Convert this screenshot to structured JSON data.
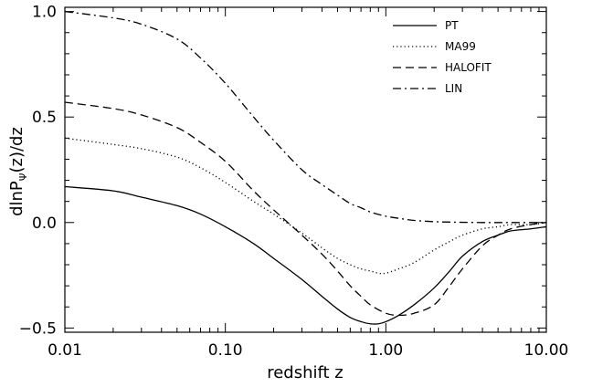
{
  "chart_data": {
    "type": "line",
    "xlabel": "redshift z",
    "ylabel": "dlnP_Ψ(z)/dz",
    "ylabel_parts": {
      "main": "dlnP",
      "sub": "Ψ",
      "tail": "(z)/dz"
    },
    "x_scale": "log",
    "xlim": [
      0.01,
      10.0
    ],
    "ylim": [
      -0.52,
      1.02
    ],
    "x_ticks": [
      {
        "value": 0.01,
        "label": "0.01"
      },
      {
        "value": 0.1,
        "label": "0.10"
      },
      {
        "value": 1.0,
        "label": "1.00"
      },
      {
        "value": 10.0,
        "label": "10.00"
      }
    ],
    "y_ticks": [
      {
        "value": -0.5,
        "label": "−0.5"
      },
      {
        "value": 0.0,
        "label": "0.0"
      },
      {
        "value": 0.5,
        "label": "0.5"
      },
      {
        "value": 1.0,
        "label": "1.0"
      }
    ],
    "grid": false,
    "legend_position": "top-right",
    "series": [
      {
        "name": "PT",
        "dash": "solid",
        "x": [
          0.01,
          0.02,
          0.03,
          0.05,
          0.07,
          0.1,
          0.15,
          0.2,
          0.3,
          0.4,
          0.5,
          0.6,
          0.7,
          0.8,
          0.9,
          1.0,
          1.2,
          1.5,
          2.0,
          2.5,
          3.0,
          4.0,
          5.0,
          6.0,
          8.0,
          10.0
        ],
        "y": [
          0.17,
          0.15,
          0.12,
          0.08,
          0.04,
          -0.02,
          -0.1,
          -0.17,
          -0.27,
          -0.35,
          -0.41,
          -0.45,
          -0.47,
          -0.48,
          -0.48,
          -0.47,
          -0.44,
          -0.39,
          -0.31,
          -0.23,
          -0.16,
          -0.09,
          -0.06,
          -0.04,
          -0.03,
          -0.02
        ]
      },
      {
        "name": "MA99",
        "dash": "dotted",
        "x": [
          0.01,
          0.02,
          0.03,
          0.05,
          0.07,
          0.1,
          0.15,
          0.2,
          0.3,
          0.4,
          0.5,
          0.6,
          0.7,
          0.8,
          0.9,
          1.0,
          1.2,
          1.5,
          2.0,
          2.5,
          3.0,
          4.0,
          5.0,
          6.0,
          8.0,
          10.0
        ],
        "y": [
          0.4,
          0.37,
          0.35,
          0.31,
          0.26,
          0.19,
          0.1,
          0.04,
          -0.05,
          -0.12,
          -0.17,
          -0.2,
          -0.22,
          -0.23,
          -0.24,
          -0.24,
          -0.22,
          -0.19,
          -0.13,
          -0.09,
          -0.06,
          -0.03,
          -0.02,
          -0.01,
          -0.01,
          0.0
        ]
      },
      {
        "name": "HALOFIT",
        "dash": "dashed",
        "x": [
          0.01,
          0.02,
          0.03,
          0.05,
          0.07,
          0.1,
          0.15,
          0.2,
          0.3,
          0.4,
          0.5,
          0.6,
          0.7,
          0.8,
          1.0,
          1.2,
          1.5,
          2.0,
          2.5,
          3.0,
          4.0,
          5.0,
          6.0,
          8.0,
          10.0
        ],
        "y": [
          0.57,
          0.54,
          0.51,
          0.45,
          0.38,
          0.29,
          0.15,
          0.06,
          -0.06,
          -0.15,
          -0.23,
          -0.3,
          -0.35,
          -0.39,
          -0.43,
          -0.44,
          -0.43,
          -0.39,
          -0.3,
          -0.22,
          -0.11,
          -0.06,
          -0.03,
          -0.01,
          0.0
        ]
      },
      {
        "name": "LIN",
        "dash": "dashdot",
        "x": [
          0.01,
          0.02,
          0.03,
          0.05,
          0.07,
          0.1,
          0.15,
          0.2,
          0.3,
          0.4,
          0.5,
          0.6,
          0.7,
          0.8,
          1.0,
          1.2,
          1.5,
          2.0,
          2.5,
          3.0,
          4.0,
          5.0,
          6.0,
          8.0,
          10.0
        ],
        "y": [
          1.0,
          0.97,
          0.94,
          0.87,
          0.78,
          0.66,
          0.5,
          0.39,
          0.25,
          0.18,
          0.13,
          0.09,
          0.07,
          0.05,
          0.03,
          0.02,
          0.01,
          0.004,
          0.002,
          0.001,
          0.0,
          0.0,
          0.0,
          0.0,
          0.0
        ]
      }
    ]
  }
}
